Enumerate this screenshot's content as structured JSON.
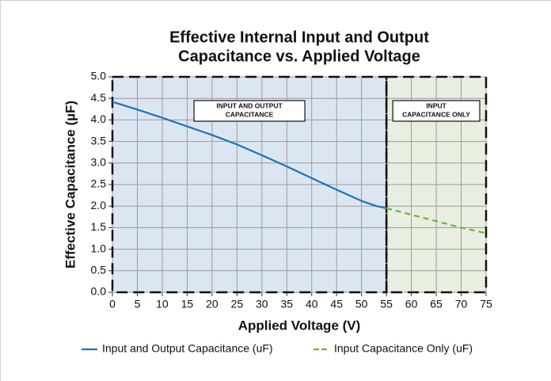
{
  "chart_data": {
    "type": "line",
    "title": [
      "Effective Internal Input and Output",
      "Capacitance vs. Applied Voltage"
    ],
    "x_label": "Applied Voltage (V)",
    "y_label": "Effective Capacitance (µF)",
    "xlim": [
      0,
      75
    ],
    "ylim": [
      0,
      5
    ],
    "xticks": [
      0,
      5,
      10,
      15,
      20,
      25,
      30,
      35,
      40,
      45,
      50,
      55,
      60,
      65,
      70,
      75
    ],
    "yticks": [
      {
        "value": 0,
        "label": "0.0"
      },
      0.5,
      {
        "value": 1,
        "label": "1.0"
      },
      1.5,
      {
        "value": 2,
        "label": "2.0"
      },
      2.5,
      {
        "value": 3,
        "label": "3.0"
      },
      3.5,
      {
        "value": 4,
        "label": "4.0"
      },
      4.5,
      {
        "value": 5,
        "label": "5.0"
      }
    ],
    "grid": true,
    "legend": "bottom",
    "regions": [
      {
        "xlim": [
          0,
          55
        ],
        "color": "#dce6f2",
        "label": [
          "INPUT AND OUTPUT",
          "CAPACITANCE"
        ]
      },
      {
        "xlim": [
          55,
          75
        ],
        "color": "#e8efe0",
        "label": [
          "INPUT",
          "CAPACITANCE ONLY"
        ]
      }
    ],
    "series": [
      {
        "name": "Input and Output Capacitance (uF)",
        "color": "#1a75b8",
        "dashed": false,
        "x": [
          0,
          5,
          10,
          15,
          20,
          25,
          30,
          35,
          40,
          45,
          50,
          53,
          55
        ],
        "values": [
          4.42,
          4.24,
          4.05,
          3.85,
          3.65,
          3.43,
          3.18,
          2.92,
          2.65,
          2.38,
          2.12,
          2.0,
          1.95
        ]
      },
      {
        "name": "Input Capacitance Only (uF)",
        "color": "#6db33f",
        "dashed": true,
        "x": [
          55,
          60,
          65,
          70,
          75
        ],
        "values": [
          1.95,
          1.8,
          1.65,
          1.5,
          1.37
        ]
      }
    ]
  }
}
